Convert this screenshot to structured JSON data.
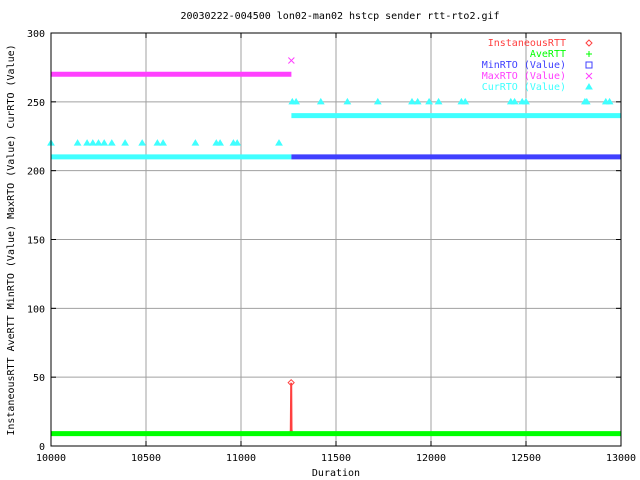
{
  "chart_data": {
    "type": "scatter",
    "title": "20030222-004500 lon02-man02 hstcp sender rtt-rto2.gif",
    "xlabel": "Duration",
    "ylabel": "InstaneousRTT AveRTT MinRTO (Value) MaxRTO (Value) CurRTO (Value)",
    "xlim": [
      10000,
      13000
    ],
    "ylim": [
      0,
      300
    ],
    "x_ticks": [
      "10000",
      "10500",
      "11000",
      "11500",
      "12000",
      "12500",
      "13000"
    ],
    "y_ticks": [
      "0",
      "50",
      "100",
      "150",
      "200",
      "250",
      "300"
    ],
    "grid": true,
    "legend_position": "top-right",
    "series": [
      {
        "name": "InstaneousRTT",
        "color": "#ff4040",
        "marker": "diamond",
        "x": [
          10000,
          10500,
          11000,
          11260,
          11262,
          11264,
          11266,
          11270,
          11500,
          12000,
          12500,
          13000
        ],
        "y": [
          8,
          8,
          8,
          8,
          12,
          46,
          12,
          8,
          8,
          8,
          8,
          8
        ]
      },
      {
        "name": "AveRTT",
        "color": "#00ff00",
        "marker": "plus",
        "x": [
          10000,
          13000
        ],
        "y": [
          9,
          9
        ]
      },
      {
        "name": "MinRTO (Value)",
        "color": "#4040ff",
        "marker": "square",
        "x": [
          11265,
          13000
        ],
        "y": [
          210,
          210
        ]
      },
      {
        "name": "MaxRTO (Value)",
        "color": "#ff40ff",
        "marker": "cross",
        "x": [
          10000,
          11265,
          11265
        ],
        "y": [
          270,
          270,
          280
        ]
      },
      {
        "name": "CurRTO (Value)",
        "color": "#40ffff",
        "marker": "triangle",
        "segments": [
          {
            "x": [
              10000,
              11265
            ],
            "y": [
              210,
              210
            ]
          },
          {
            "x": [
              11265,
              13000
            ],
            "y": [
              240,
              240
            ]
          }
        ],
        "points_x": [
          10000,
          10140,
          10190,
          10220,
          10250,
          10280,
          10320,
          10390,
          10480,
          10560,
          10590,
          10760,
          10870,
          10890,
          10960,
          10980,
          11200,
          11270,
          11290,
          11420,
          11560,
          11720,
          11900,
          11930,
          11990,
          12040,
          12160,
          12180,
          12420,
          12440,
          12480,
          12500,
          12810,
          12820,
          12920,
          12940
        ],
        "points_y": [
          220,
          220,
          220,
          220,
          220,
          220,
          220,
          220,
          220,
          220,
          220,
          220,
          220,
          220,
          220,
          220,
          220,
          250,
          250,
          250,
          250,
          250,
          250,
          250,
          250,
          250,
          250,
          250,
          250,
          250,
          250,
          250,
          250,
          250,
          250,
          250
        ]
      }
    ]
  }
}
